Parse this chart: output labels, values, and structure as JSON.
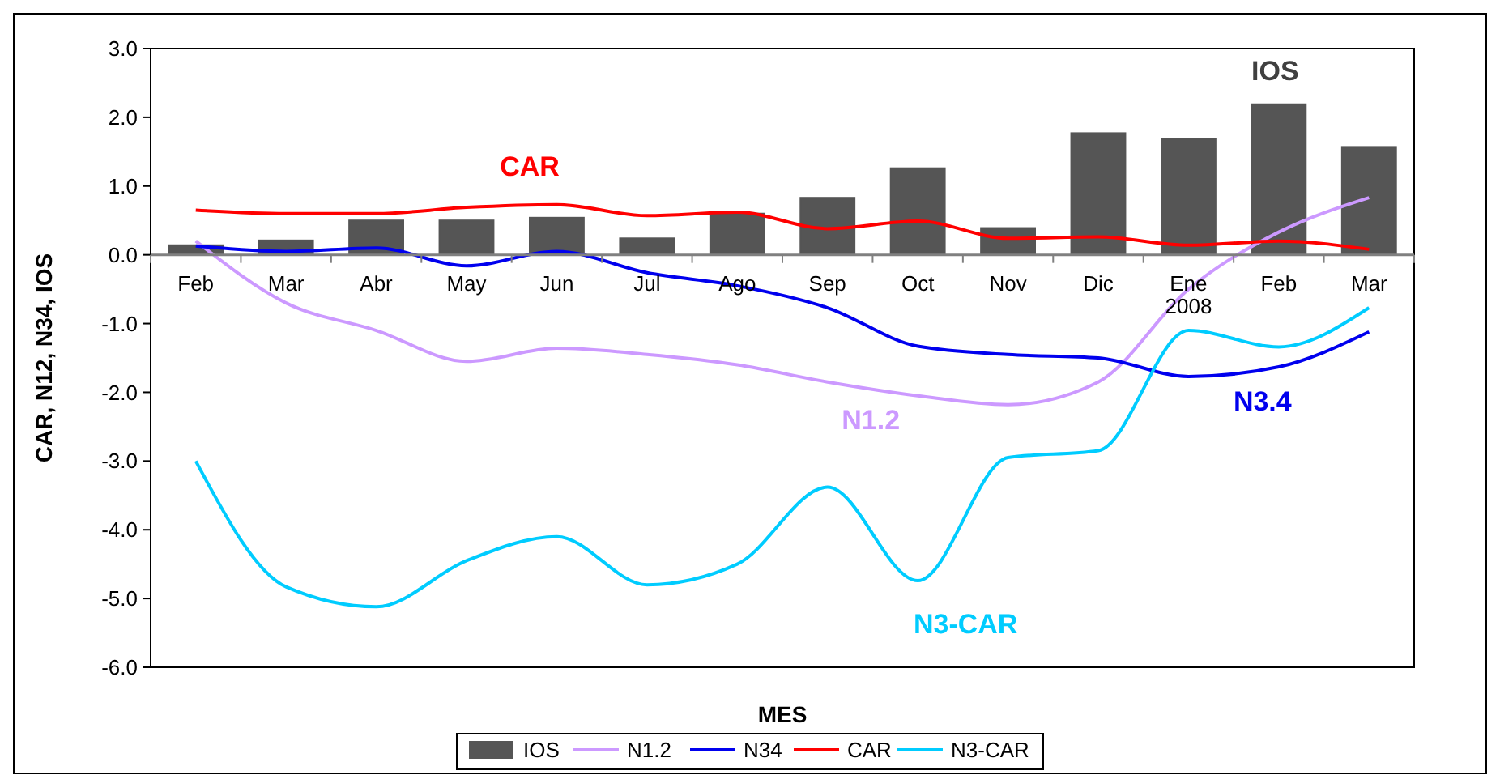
{
  "chart_data": {
    "type": "bar",
    "xlabel": "MES",
    "ylabel": "CAR, N12, N34, IOS",
    "categories": [
      "Feb",
      "Mar",
      "Abr",
      "May",
      "Jun",
      "Jul",
      "Ago",
      "Sep",
      "Oct",
      "Nov",
      "Dic",
      "Ene\n2008",
      "Feb",
      "Mar"
    ],
    "series": [
      {
        "name": "IOS",
        "color": "#555555",
        "values": [
          0.14,
          0.21,
          0.5,
          0.5,
          0.54,
          0.24,
          0.6,
          0.83,
          1.26,
          0.39,
          1.77,
          1.69,
          2.19,
          1.57
        ]
      },
      {
        "name": "N1.2",
        "type": "line",
        "color": "#cc99ff",
        "values": [
          0.2,
          -0.7,
          -1.1,
          -1.55,
          -1.36,
          -1.45,
          -1.6,
          -1.85,
          -2.05,
          -2.18,
          -1.85,
          -0.5,
          0.33,
          0.83
        ]
      },
      {
        "name": "N34",
        "type": "line",
        "color": "#0000ee",
        "values": [
          0.13,
          0.05,
          0.1,
          -0.16,
          0.05,
          -0.26,
          -0.45,
          -0.77,
          -1.33,
          -1.45,
          -1.5,
          -1.77,
          -1.63,
          -1.12
        ]
      },
      {
        "name": "CAR",
        "type": "line",
        "color": "#ff0000",
        "values": [
          0.65,
          0.6,
          0.6,
          0.69,
          0.73,
          0.57,
          0.62,
          0.38,
          0.49,
          0.24,
          0.26,
          0.14,
          0.2,
          0.08
        ]
      },
      {
        "name": "N3-CAR",
        "type": "line",
        "color": "#00ccff",
        "values": [
          -3.0,
          -4.83,
          -5.12,
          -4.45,
          -4.1,
          -4.8,
          -4.5,
          -3.38,
          -4.74,
          -2.95,
          -2.85,
          -1.1,
          -1.34,
          -0.77
        ]
      }
    ],
    "ylim": [
      -6,
      3
    ],
    "yticks": [
      {
        "value": -6,
        "label": "-6.0"
      },
      {
        "value": -5,
        "label": "-5.0"
      },
      {
        "value": -4,
        "label": "-4.0"
      },
      {
        "value": -3,
        "label": "-3.0"
      },
      {
        "value": -2,
        "label": "-2.0"
      },
      {
        "value": -1,
        "label": "-1.0"
      },
      {
        "value": 0,
        "label": "0.0"
      },
      {
        "value": 1,
        "label": "1.0"
      },
      {
        "value": 2,
        "label": "2.0"
      },
      {
        "value": 3,
        "label": "3.0"
      }
    ],
    "annotations": [
      "CAR",
      "IOS",
      "N1.2",
      "N3.4",
      "N3-CAR"
    ],
    "grid": false,
    "legend": "bottom",
    "marker": "none",
    "line_style": "solid"
  }
}
